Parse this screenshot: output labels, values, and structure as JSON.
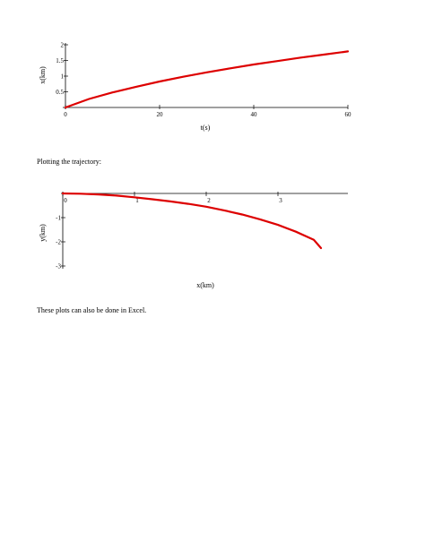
{
  "text": {
    "plotting_heading": "Plotting the trajectory:",
    "closing_note": "These plots can also be done in Excel."
  },
  "chart_data": [
    {
      "type": "line",
      "xlabel": "t(s)",
      "ylabel": "x(km)",
      "xlim": [
        0,
        60
      ],
      "ylim": [
        0,
        2
      ],
      "xticks": [
        "0",
        "20",
        "40",
        "60"
      ],
      "yticks": [
        "0.5",
        "1",
        "1.5",
        "2"
      ],
      "series": [
        {
          "color": "#dd0000",
          "x": [
            0,
            5,
            10,
            15,
            20,
            25,
            30,
            35,
            40,
            45,
            50,
            55,
            60
          ],
          "y": [
            0,
            0.27,
            0.48,
            0.66,
            0.83,
            0.98,
            1.12,
            1.25,
            1.37,
            1.48,
            1.59,
            1.69,
            1.79
          ]
        }
      ]
    },
    {
      "type": "line",
      "xlabel": "x(km)",
      "ylabel": "y(km)",
      "xlim": [
        0,
        4
      ],
      "ylim": [
        -3,
        0
      ],
      "xticks": [
        "0",
        "1",
        "2",
        "3"
      ],
      "yticks": [
        "-1",
        "-2",
        "-3"
      ],
      "series": [
        {
          "color": "#dd0000",
          "x": [
            0,
            0.25,
            0.5,
            0.75,
            1,
            1.25,
            1.5,
            1.75,
            2,
            2.25,
            2.5,
            2.75,
            3,
            3.25,
            3.5,
            3.6
          ],
          "y": [
            0,
            -0.01,
            -0.04,
            -0.09,
            -0.16,
            -0.24,
            -0.33,
            -0.43,
            -0.55,
            -0.7,
            -0.87,
            -1.07,
            -1.3,
            -1.58,
            -1.92,
            -2.26
          ]
        }
      ]
    }
  ]
}
